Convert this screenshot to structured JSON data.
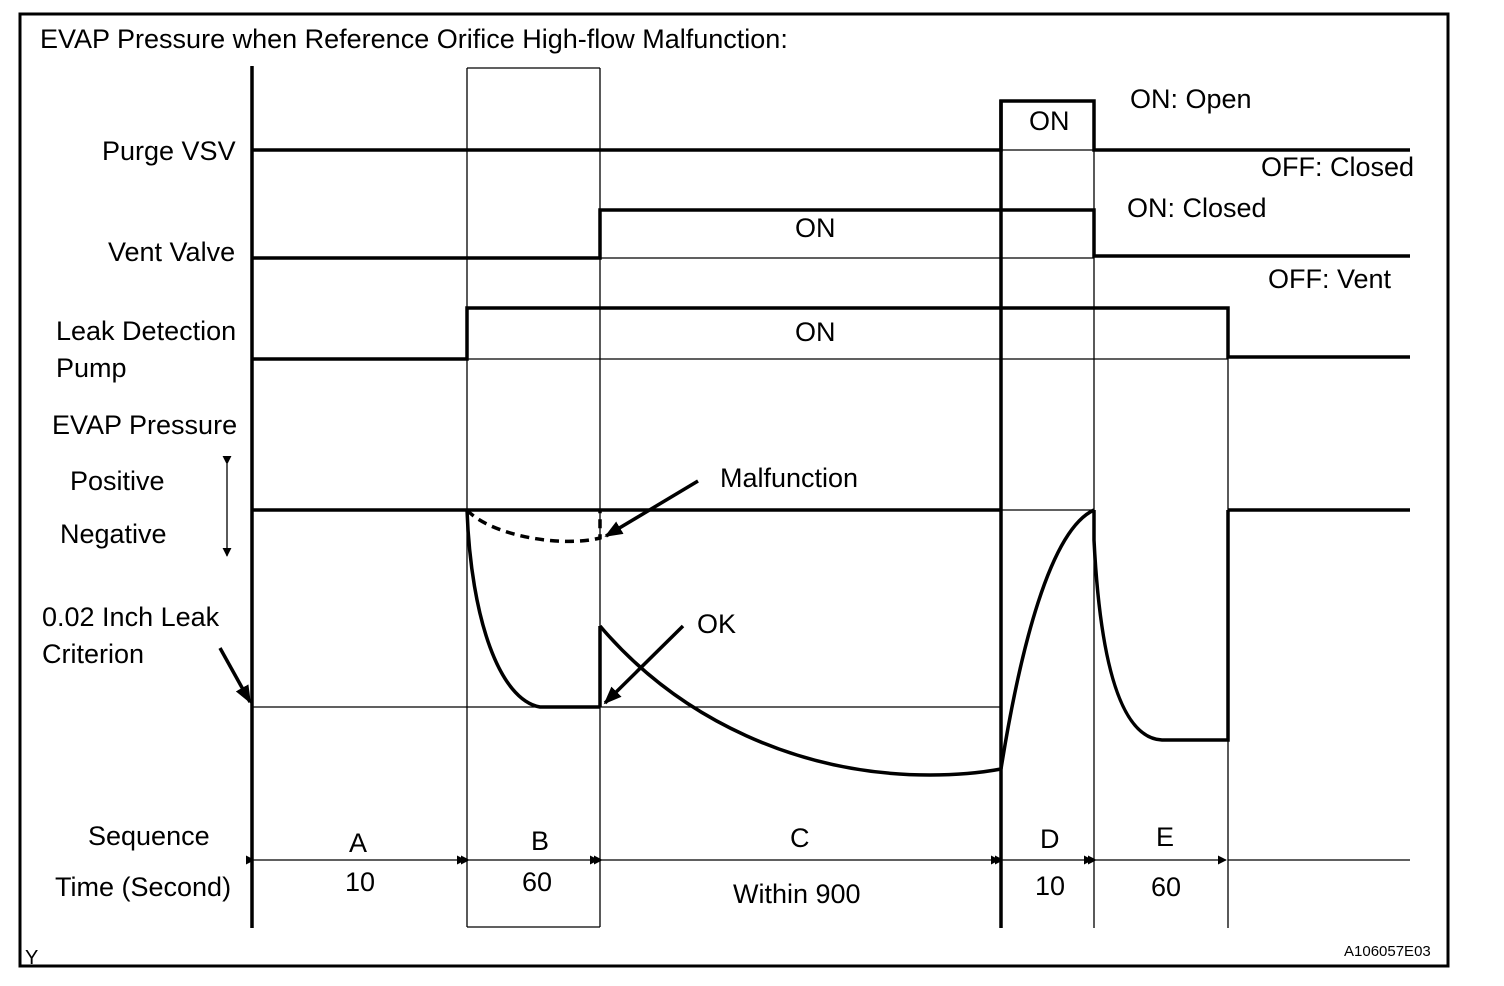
{
  "title": "EVAP Pressure when Reference Orifice High-flow Malfunction:",
  "signals": {
    "purge_vsv": "Purge VSV",
    "vent_valve": "Vent Valve",
    "leak_pump_line1": "Leak Detection",
    "leak_pump_line2": "Pump",
    "evap_pressure": "EVAP Pressure"
  },
  "states": {
    "on": "ON",
    "purge_on_meaning": "ON: Open",
    "purge_off_meaning": "OFF: Closed",
    "vent_on_meaning": "ON: Closed",
    "vent_off_meaning": "OFF: Vent"
  },
  "pressure": {
    "positive": "Positive",
    "negative": "Negative",
    "criterion_line1": "0.02 Inch Leak",
    "criterion_line2": "Criterion",
    "malfunction": "Malfunction",
    "ok": "OK"
  },
  "timeline": {
    "sequence_label": "Sequence",
    "time_label": "Time (Second)",
    "phases": [
      {
        "name": "A",
        "time": "10"
      },
      {
        "name": "B",
        "time": "60"
      },
      {
        "name": "C",
        "time": "Within 900"
      },
      {
        "name": "D",
        "time": "10"
      },
      {
        "name": "E",
        "time": "60"
      }
    ]
  },
  "footer": {
    "corner_mark": "Y",
    "figure_id": "A106057E03"
  }
}
